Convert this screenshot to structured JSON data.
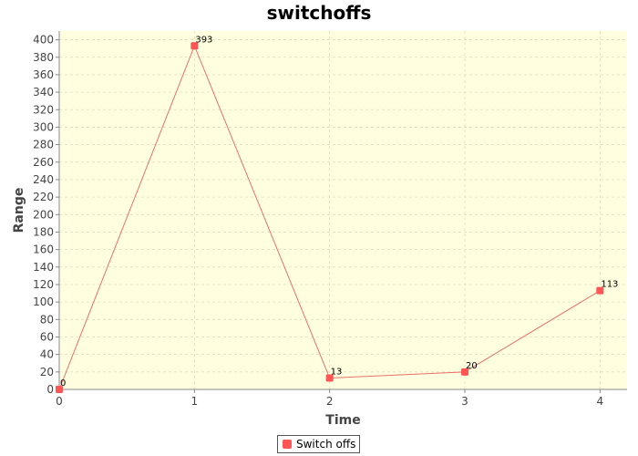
{
  "chart_data": {
    "type": "line",
    "title": "switchoffs",
    "xlabel": "Time",
    "ylabel": "Range",
    "x": [
      0,
      1,
      2,
      3,
      4
    ],
    "series": [
      {
        "name": "Switch offs",
        "values": [
          0,
          393,
          13,
          20,
          113
        ]
      }
    ],
    "data_labels": [
      "0",
      "393",
      "13",
      "20",
      "113"
    ],
    "xlim": [
      0,
      4.2
    ],
    "ylim": [
      0,
      410
    ],
    "xticks": [
      0,
      1,
      2,
      3,
      4
    ],
    "yticks": [
      0,
      20,
      40,
      60,
      80,
      100,
      120,
      140,
      160,
      180,
      200,
      220,
      240,
      260,
      280,
      300,
      320,
      340,
      360,
      380,
      400
    ],
    "grid": true,
    "legend_position": "bottom-center",
    "colors": {
      "plot_background": "#ffffe0",
      "series": "#ff5555",
      "line": "#e8706a",
      "grid": "#dcdcc0"
    }
  }
}
